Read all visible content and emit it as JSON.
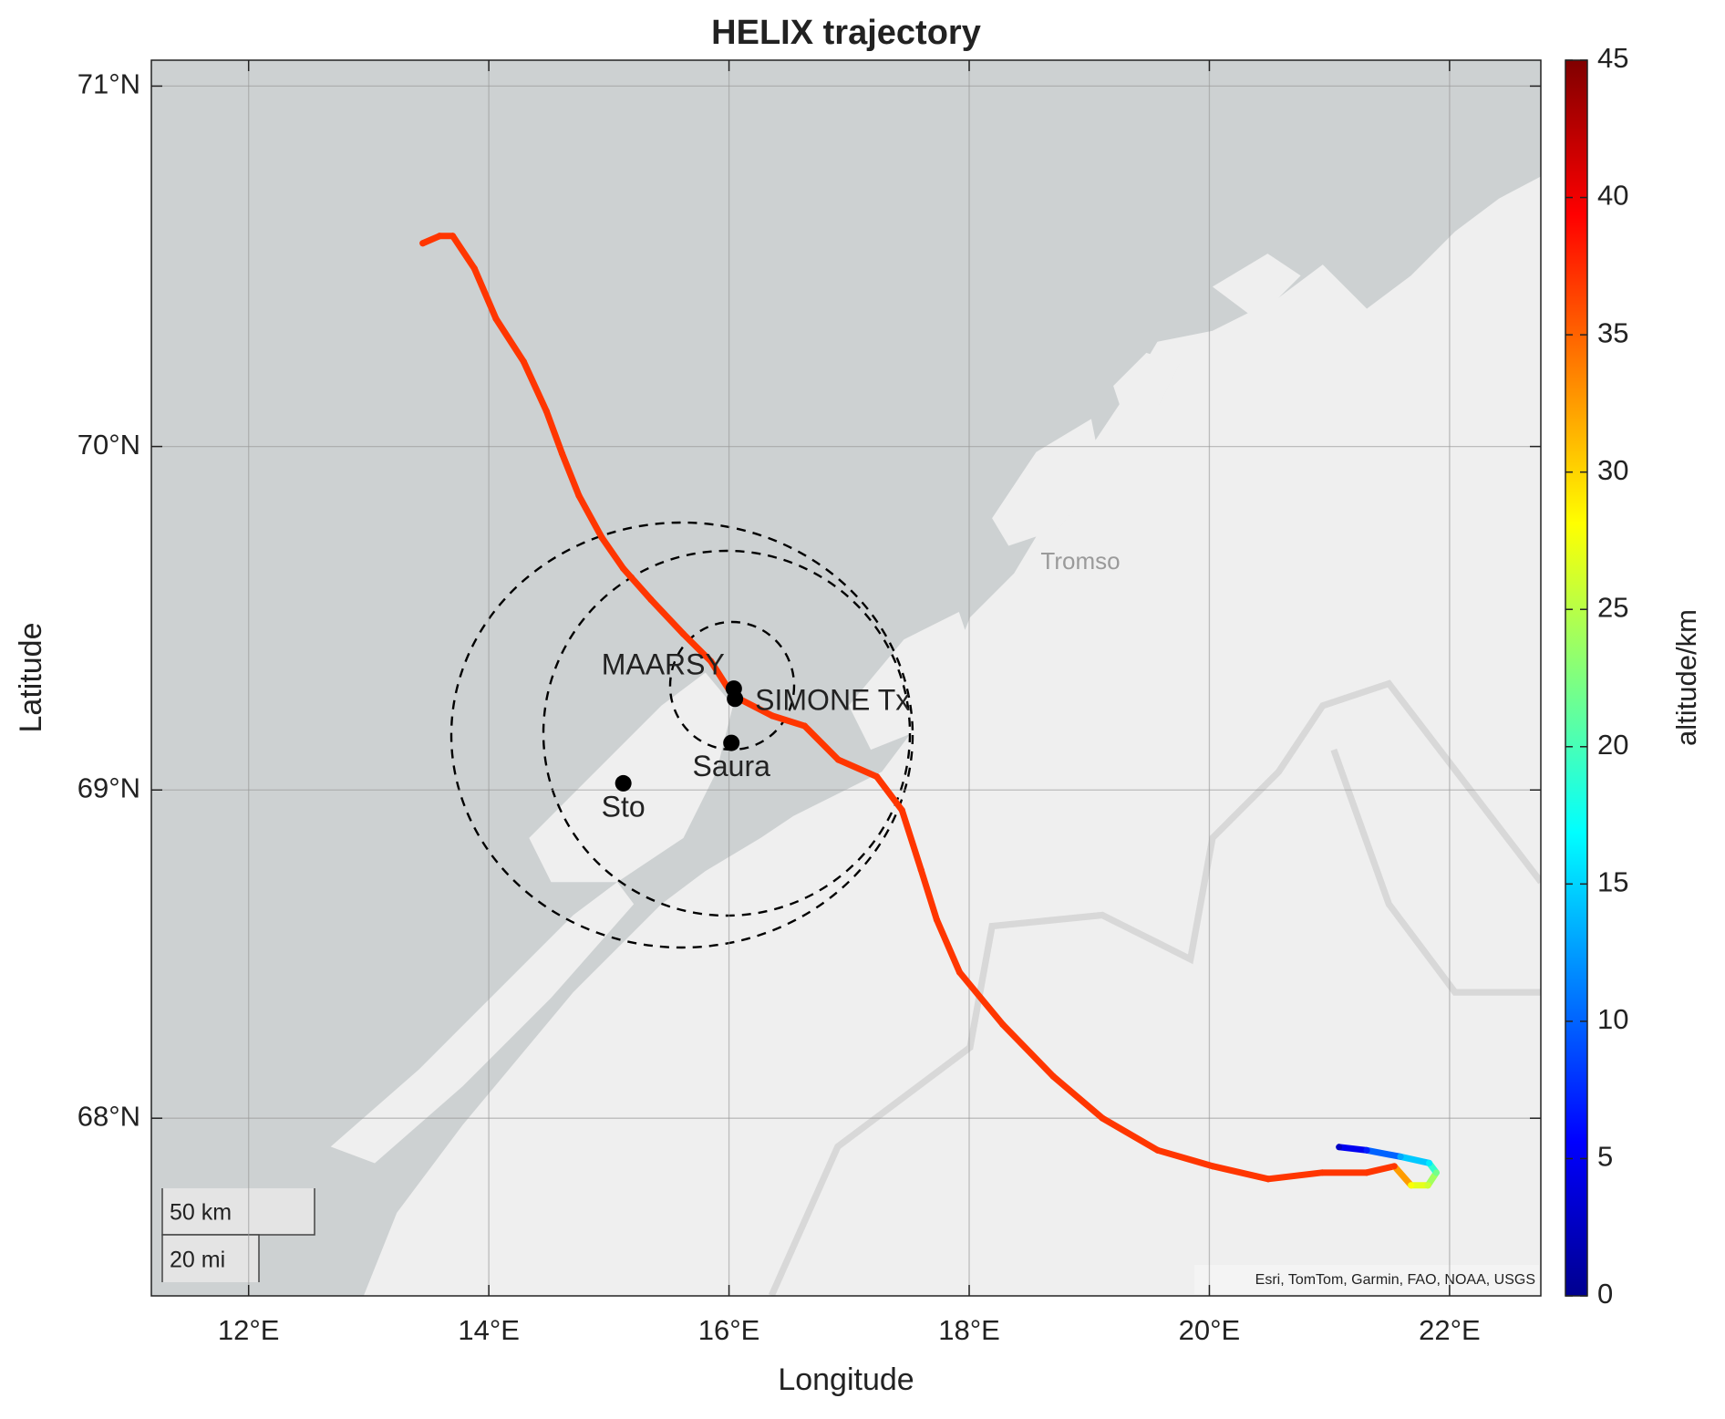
{
  "chart_data": {
    "type": "map",
    "title": "HELIX trajectory",
    "xlabel": "Longitude",
    "ylabel": "Latitude",
    "xlim": [
      11.19,
      22.76
    ],
    "ylim": [
      67.44,
      71.07
    ],
    "projection": "mercator",
    "grid": true,
    "xticks": [
      {
        "value": 12,
        "label": "12°E"
      },
      {
        "value": 14,
        "label": "14°E"
      },
      {
        "value": 16,
        "label": "16°E"
      },
      {
        "value": 18,
        "label": "18°E"
      },
      {
        "value": 20,
        "label": "20°E"
      },
      {
        "value": 22,
        "label": "22°E"
      }
    ],
    "yticks": [
      {
        "value": 68,
        "label": "68°N"
      },
      {
        "value": 69,
        "label": "69°N"
      },
      {
        "value": 70,
        "label": "70°N"
      },
      {
        "value": 71,
        "label": "71°N"
      }
    ],
    "trajectory": {
      "x": [
        13.45,
        13.59,
        13.7,
        13.88,
        14.06,
        14.29,
        14.48,
        14.61,
        14.75,
        14.94,
        15.12,
        15.35,
        15.62,
        15.85,
        16.03,
        16.36,
        16.63,
        16.91,
        17.23,
        17.44,
        17.6,
        17.73,
        17.92,
        18.28,
        18.7,
        19.11,
        19.57,
        20.03,
        20.49,
        20.94,
        21.31,
        21.54,
        21.68,
        21.82,
        21.89,
        21.83,
        21.59,
        21.31,
        21.08
      ],
      "y": [
        70.57,
        70.59,
        70.59,
        70.5,
        70.36,
        70.24,
        70.1,
        69.98,
        69.86,
        69.74,
        69.65,
        69.56,
        69.46,
        69.38,
        69.28,
        69.22,
        69.19,
        69.09,
        69.04,
        68.94,
        68.76,
        68.61,
        68.45,
        68.29,
        68.13,
        68.0,
        67.9,
        67.85,
        67.81,
        67.83,
        67.83,
        67.85,
        67.79,
        67.79,
        67.83,
        67.86,
        67.88,
        67.9,
        67.91
      ],
      "altitude": [
        37,
        37,
        37,
        37,
        37,
        37,
        37,
        37,
        37,
        37,
        37,
        37,
        37,
        37,
        37,
        37,
        37,
        37,
        37,
        37,
        37,
        37,
        37,
        37,
        37,
        37,
        37,
        37,
        37,
        37,
        37,
        37,
        28,
        26,
        22,
        16,
        13,
        7,
        3
      ]
    },
    "stations": [
      {
        "name": "MAARSY",
        "lon": 16.04,
        "lat": 69.3
      },
      {
        "name": "SIMONE Tx",
        "lon": 16.05,
        "lat": 69.27
      },
      {
        "name": "Saura",
        "lon": 16.02,
        "lat": 69.14
      },
      {
        "name": "Sto",
        "lon": 15.12,
        "lat": 69.02
      }
    ],
    "place_label": "Tromso",
    "attribution": "Esri, TomTom, Garmin, FAO, NOAA, USGS",
    "scale_bar": [
      "50 km",
      "20 mi"
    ],
    "colorbar": {
      "label": "altitude/km",
      "colormap": "jet",
      "lim": [
        0,
        45
      ],
      "ticks": [
        0,
        5,
        10,
        15,
        20,
        25,
        30,
        35,
        40,
        45
      ]
    }
  }
}
